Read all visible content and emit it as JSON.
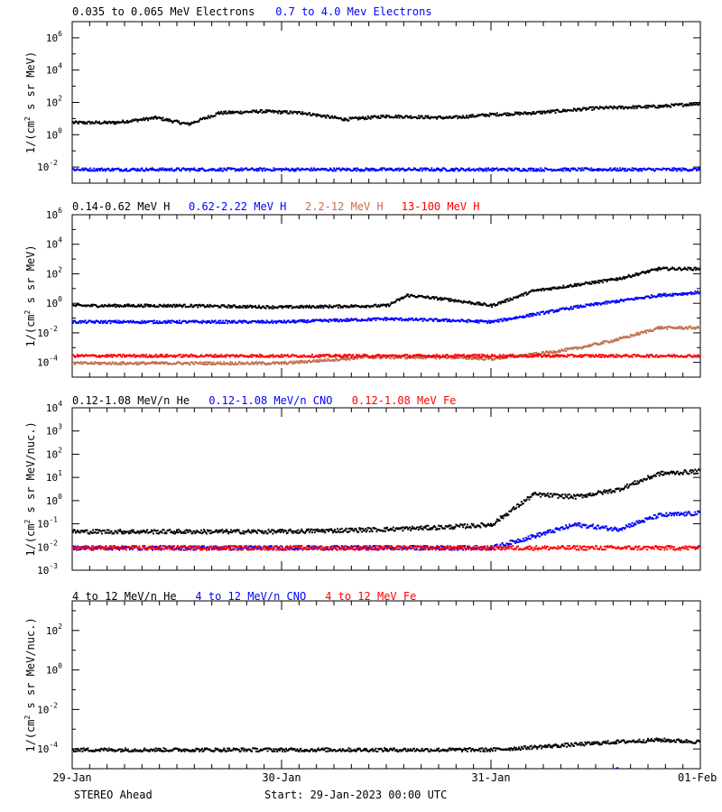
{
  "chart_data": [
    {
      "type": "scatter",
      "ylabel_main": "1/(cm",
      "ylabel_sup": "2",
      "ylabel_rest": " s sr MeV)",
      "ylim_exp": [
        -3,
        7
      ],
      "y_ticks": [
        -2,
        0,
        2,
        4,
        6
      ],
      "x_range_days": [
        0,
        3
      ],
      "series": [
        {
          "name": "0.035 to 0.065 MeV Electrons",
          "color": "#000000",
          "x": [
            0,
            0.2,
            0.4,
            0.55,
            0.7,
            0.9,
            1.1,
            1.3,
            1.5,
            1.8,
            2.0,
            2.2,
            2.5,
            2.8,
            3.0
          ],
          "y": [
            0.8,
            0.8,
            1.1,
            0.7,
            1.4,
            1.5,
            1.4,
            1.0,
            1.2,
            1.1,
            1.3,
            1.4,
            1.7,
            1.8,
            2.0
          ]
        },
        {
          "name": "0.7 to 4.0 Mev Electrons",
          "color": "#0000ff",
          "x": [
            0,
            3
          ],
          "y": [
            -2.1,
            -2.1
          ]
        }
      ]
    },
    {
      "type": "scatter",
      "ylabel_main": "1/(cm",
      "ylabel_sup": "2",
      "ylabel_rest": " s sr MeV)",
      "ylim_exp": [
        -5,
        6
      ],
      "y_ticks": [
        -4,
        -2,
        0,
        2,
        4,
        6
      ],
      "x_range_days": [
        0,
        3
      ],
      "series": [
        {
          "name": "0.14-0.62 MeV H",
          "color": "#000000",
          "x": [
            0,
            0.5,
            1.0,
            1.5,
            1.6,
            1.8,
            2.0,
            2.2,
            2.4,
            2.6,
            2.8,
            3.0
          ],
          "y": [
            -0.1,
            -0.1,
            -0.2,
            -0.1,
            0.6,
            0.3,
            -0.1,
            0.9,
            1.3,
            1.7,
            2.4,
            2.4
          ]
        },
        {
          "name": "0.62-2.22 MeV H",
          "color": "#0000ff",
          "x": [
            0,
            0.5,
            1.0,
            1.5,
            1.8,
            2.0,
            2.2,
            2.4,
            2.6,
            2.8,
            3.0
          ],
          "y": [
            -1.2,
            -1.2,
            -1.2,
            -1.0,
            -1.1,
            -1.2,
            -0.7,
            -0.2,
            0.2,
            0.6,
            0.8
          ]
        },
        {
          "name": "2.2-12 MeV H",
          "color": "#c07050",
          "x": [
            0,
            1.0,
            1.4,
            1.8,
            2.0,
            2.2,
            2.4,
            2.6,
            2.8,
            3.0
          ],
          "y": [
            -4.0,
            -4.0,
            -3.6,
            -3.6,
            -3.7,
            -3.4,
            -3.0,
            -2.4,
            -1.6,
            -1.6
          ]
        },
        {
          "name": "13-100 MeV H",
          "color": "#ff0000",
          "x": [
            0,
            3
          ],
          "y": [
            -3.5,
            -3.5
          ]
        }
      ]
    },
    {
      "type": "scatter",
      "ylabel_main": "1/(cm",
      "ylabel_sup": "2",
      "ylabel_rest": " s sr MeV/nuc.)",
      "ylim_exp": [
        -3,
        4
      ],
      "y_ticks": [
        -3,
        -2,
        -1,
        0,
        1,
        2,
        3,
        4
      ],
      "x_range_days": [
        0,
        3
      ],
      "series": [
        {
          "name": "0.12-1.08 MeV/n He",
          "color": "#000000",
          "x": [
            0,
            0.5,
            1.0,
            1.5,
            1.8,
            2.0,
            2.2,
            2.4,
            2.6,
            2.8,
            3.0
          ],
          "y": [
            -1.3,
            -1.3,
            -1.3,
            -1.2,
            -1.1,
            -1.0,
            0.3,
            0.2,
            0.5,
            1.2,
            1.3
          ]
        },
        {
          "name": "0.12-1.08 MeV/n CNO",
          "color": "#0000ff",
          "x": [
            0,
            1.5,
            2.0,
            2.2,
            2.4,
            2.6,
            2.8,
            3.0
          ],
          "y": [
            -2.0,
            -2.0,
            -2.0,
            -1.5,
            -1.0,
            -1.2,
            -0.6,
            -0.5
          ]
        },
        {
          "name": "0.12-1.08 MeV Fe",
          "color": "#ff0000",
          "x": [
            0,
            3
          ],
          "y": [
            -2.0,
            -2.0
          ]
        }
      ]
    },
    {
      "type": "scatter",
      "ylabel_main": "1/(cm",
      "ylabel_sup": "2",
      "ylabel_rest": " s sr MeV/nuc.)",
      "ylim_exp": [
        -5,
        3.5
      ],
      "y_ticks": [
        -4,
        -2,
        0,
        2
      ],
      "x_range_days": [
        0,
        3
      ],
      "series": [
        {
          "name": "4 to 12 MeV/n He",
          "color": "#000000",
          "x": [
            0,
            0.5,
            1.0,
            1.5,
            2.0,
            2.3,
            2.6,
            2.8,
            3.0
          ],
          "y": [
            -4.0,
            -4.0,
            -4.0,
            -4.0,
            -4.0,
            -3.8,
            -3.6,
            -3.5,
            -3.6
          ]
        },
        {
          "name": "4 to 12 MeV/n CNO",
          "color": "#0000ff",
          "x": [
            2.6
          ],
          "y": [
            -5.0
          ]
        },
        {
          "name": "4 to 12 MeV Fe",
          "color": "#ff0000",
          "x": [],
          "y": []
        }
      ]
    }
  ],
  "x_ticks": [
    {
      "day": 0,
      "label": "29-Jan"
    },
    {
      "day": 1,
      "label": "30-Jan"
    },
    {
      "day": 2,
      "label": "31-Jan"
    },
    {
      "day": 3,
      "label": "01-Feb"
    }
  ],
  "footer": {
    "spacecraft": "STEREO Ahead",
    "start": "Start: 29-Jan-2023 00:00 UTC"
  }
}
